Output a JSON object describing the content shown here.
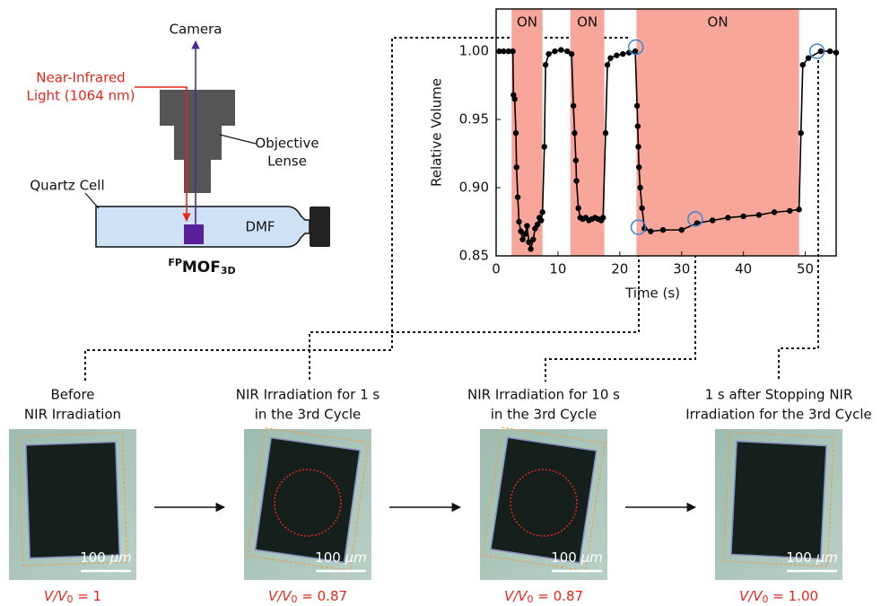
{
  "chart_data": {
    "type": "line",
    "x_label": "Time (s)",
    "y_label": "Relative Volume",
    "xlim": [
      0,
      55
    ],
    "ylim": [
      0.85,
      1.031
    ],
    "xticks": [
      0,
      10,
      20,
      30,
      40,
      50
    ],
    "yticks": [
      {
        "value": 0.85,
        "label": "0.85"
      },
      {
        "value": 0.9,
        "label": "0.90"
      },
      {
        "value": 0.95,
        "label": "0.95"
      },
      {
        "value": 1.0,
        "label": "1.00"
      }
    ],
    "color": "#000000",
    "region_color": "#f7a699",
    "highlight_color": "#3a86d8",
    "regions": [
      {
        "start": 2.5,
        "end": 7.5,
        "label": "ON"
      },
      {
        "start": 12,
        "end": 17.5,
        "label": "ON"
      },
      {
        "start": 22.7,
        "end": 49,
        "label": "ON"
      }
    ],
    "x": [
      0.5,
      1.2,
      2.0,
      2.7,
      2.8,
      3.0,
      3.2,
      3.3,
      3.5,
      3.7,
      4.0,
      4.3,
      4.7,
      5.0,
      5.3,
      5.6,
      6.0,
      6.3,
      6.7,
      7.0,
      7.3,
      7.5,
      7.8,
      8.0,
      8.5,
      9.5,
      10.5,
      11.5,
      12.2,
      12.5,
      12.7,
      12.9,
      13.0,
      13.3,
      13.6,
      14.0,
      14.5,
      15.0,
      15.5,
      16.0,
      16.5,
      17.0,
      17.3,
      17.7,
      18.0,
      18.5,
      19.5,
      20.5,
      21.5,
      22.5,
      22.8,
      22.9,
      23.0,
      23.1,
      23.3,
      23.6,
      24,
      25,
      27,
      30,
      32.5,
      35,
      37.5,
      40,
      42.5,
      45,
      47.5,
      49,
      49.3,
      49.6,
      50.5,
      52.5,
      54,
      55
    ],
    "values": [
      1.0,
      1.0,
      1.0,
      1.0,
      0.968,
      0.965,
      0.94,
      0.915,
      0.893,
      0.875,
      0.868,
      0.862,
      0.866,
      0.872,
      0.86,
      0.855,
      0.862,
      0.87,
      0.873,
      0.878,
      0.876,
      0.882,
      0.93,
      0.99,
      0.998,
      1.0,
      1.001,
      1.0,
      0.998,
      0.96,
      0.94,
      0.92,
      0.905,
      0.885,
      0.878,
      0.877,
      0.878,
      0.876,
      0.877,
      0.878,
      0.877,
      0.876,
      0.878,
      0.94,
      0.99,
      0.995,
      0.997,
      0.998,
      0.999,
      1.0,
      0.96,
      0.945,
      0.93,
      0.915,
      0.9,
      0.885,
      0.87,
      0.868,
      0.869,
      0.869,
      0.874,
      0.876,
      0.878,
      0.879,
      0.88,
      0.882,
      0.883,
      0.884,
      0.94,
      0.99,
      0.995,
      1.0,
      1.0,
      0.999
    ],
    "highlights": [
      {
        "x": 22.6,
        "y": 1.003
      },
      {
        "x": 23.0,
        "y": 0.871
      },
      {
        "x": 32.2,
        "y": 0.877
      },
      {
        "x": 51.9,
        "y": 1.0
      }
    ]
  },
  "diagram": {
    "camera": "Camera",
    "light": [
      "Near-Infrared",
      "Light (1064 nm)"
    ],
    "objective": [
      "Objective",
      "Lense"
    ],
    "cell": "Quartz Cell",
    "solvent": "DMF",
    "sample": {
      "sup": "FP",
      "main": "MOF",
      "sub": "3D"
    }
  },
  "panels": [
    {
      "caption": [
        "Before",
        "NIR Irradiation"
      ],
      "scale": [
        "100 ",
        "μm"
      ],
      "ratio": [
        "V/V",
        "0",
        " = 1"
      ]
    },
    {
      "caption": [
        "NIR Irradiation for 1 s",
        "in the 3rd Cycle"
      ],
      "scale": [
        "100 ",
        "μm"
      ],
      "ratio": [
        "V/V",
        "0",
        " = 0.87"
      ]
    },
    {
      "caption": [
        "NIR Irradiation for 10 s",
        "in the 3rd Cycle"
      ],
      "scale": [
        "100 ",
        "μm"
      ],
      "ratio": [
        "V/V",
        "0",
        " = 0.87"
      ]
    },
    {
      "caption": [
        "1 s after Stopping NIR",
        "Irradiation for the 3rd Cycle"
      ],
      "scale": [
        "100 ",
        "μm"
      ],
      "ratio": [
        "V/V",
        "0",
        " = 1.00"
      ]
    }
  ]
}
